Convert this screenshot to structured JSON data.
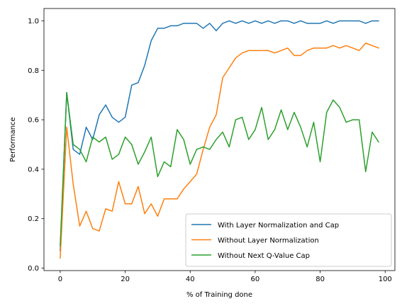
{
  "chart_data": {
    "type": "line",
    "title": "",
    "xlabel": "% of Training done",
    "ylabel": "Performance",
    "xlim": [
      -5,
      103
    ],
    "ylim": [
      -0.01,
      1.05
    ],
    "xticks": [
      0,
      20,
      40,
      60,
      80,
      100
    ],
    "yticks": [
      0.0,
      0.2,
      0.4,
      0.6,
      0.8,
      1.0
    ],
    "xtick_labels": [
      "0",
      "20",
      "40",
      "60",
      "80",
      "100"
    ],
    "ytick_labels": [
      "0.0",
      "0.2",
      "0.4",
      "0.6",
      "0.8",
      "1.0"
    ],
    "grid": false,
    "legend_position": "lower-right",
    "x": [
      0,
      2,
      4,
      6,
      8,
      10,
      12,
      14,
      16,
      18,
      20,
      22,
      24,
      26,
      28,
      30,
      32,
      34,
      36,
      38,
      40,
      42,
      44,
      46,
      48,
      50,
      52,
      54,
      56,
      58,
      60,
      62,
      64,
      66,
      68,
      70,
      72,
      74,
      76,
      78,
      80,
      82,
      84,
      86,
      88,
      90,
      92,
      94,
      96,
      98
    ],
    "series": [
      {
        "name": "With Layer Normalization and Cap",
        "color": "#1f77b4",
        "values": [
          0.07,
          0.71,
          0.48,
          0.46,
          0.57,
          0.52,
          0.62,
          0.66,
          0.61,
          0.59,
          0.61,
          0.74,
          0.75,
          0.82,
          0.92,
          0.97,
          0.97,
          0.98,
          0.98,
          0.99,
          0.99,
          0.99,
          0.97,
          0.99,
          0.96,
          0.99,
          1.0,
          0.99,
          1.0,
          0.99,
          1.0,
          0.99,
          1.0,
          0.99,
          1.0,
          1.0,
          0.99,
          1.0,
          0.99,
          0.99,
          0.99,
          1.0,
          0.99,
          1.0,
          1.0,
          1.0,
          1.0,
          0.99,
          1.0,
          1.0
        ]
      },
      {
        "name": "Without Layer Normalization",
        "color": "#ff7f0e",
        "values": [
          0.04,
          0.57,
          0.34,
          0.17,
          0.23,
          0.16,
          0.15,
          0.24,
          0.23,
          0.35,
          0.26,
          0.26,
          0.33,
          0.22,
          0.26,
          0.21,
          0.28,
          0.28,
          0.28,
          0.32,
          0.35,
          0.38,
          0.48,
          0.57,
          0.62,
          0.77,
          0.81,
          0.85,
          0.87,
          0.88,
          0.88,
          0.88,
          0.88,
          0.87,
          0.88,
          0.89,
          0.86,
          0.86,
          0.88,
          0.89,
          0.89,
          0.89,
          0.9,
          0.89,
          0.9,
          0.89,
          0.88,
          0.91,
          0.9,
          0.89
        ]
      },
      {
        "name": "Without Next Q-Value Cap",
        "color": "#2ca02c",
        "values": [
          0.09,
          0.71,
          0.5,
          0.48,
          0.43,
          0.53,
          0.51,
          0.53,
          0.44,
          0.46,
          0.53,
          0.5,
          0.42,
          0.47,
          0.53,
          0.37,
          0.43,
          0.41,
          0.56,
          0.52,
          0.42,
          0.48,
          0.49,
          0.48,
          0.52,
          0.55,
          0.49,
          0.6,
          0.61,
          0.52,
          0.56,
          0.65,
          0.52,
          0.56,
          0.64,
          0.56,
          0.63,
          0.57,
          0.49,
          0.59,
          0.43,
          0.63,
          0.68,
          0.65,
          0.59,
          0.6,
          0.6,
          0.39,
          0.55,
          0.51
        ]
      }
    ]
  }
}
